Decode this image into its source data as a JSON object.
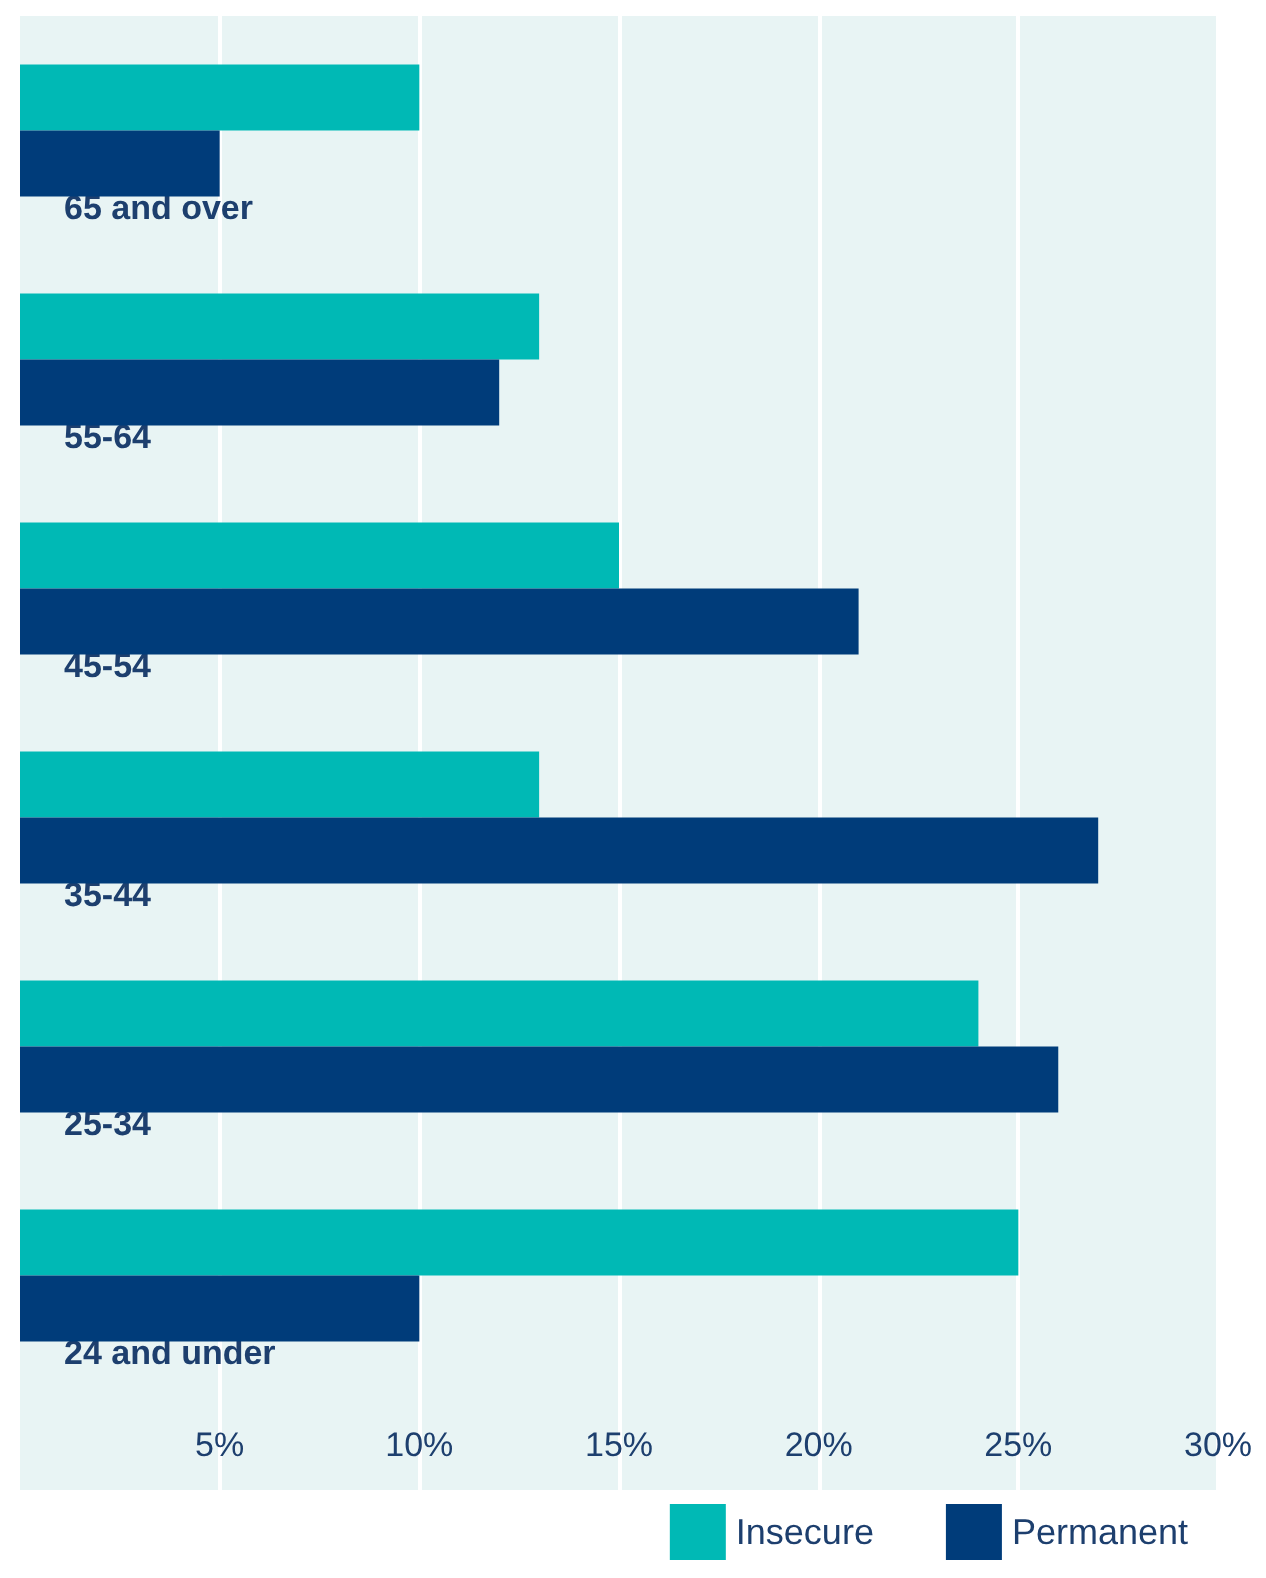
{
  "chart_data": {
    "type": "bar",
    "orientation": "horizontal",
    "categories": [
      "65 and over",
      "55-64",
      "45-54",
      "35-44",
      "25-34",
      "24 and under"
    ],
    "series": [
      {
        "name": "Insecure",
        "color": "#00b9b5",
        "values": [
          10,
          13,
          15,
          13,
          24,
          25
        ]
      },
      {
        "name": "Permanent",
        "color": "#003c7a",
        "values": [
          5,
          12,
          21,
          27,
          26,
          10
        ]
      }
    ],
    "xlim": [
      0,
      30
    ],
    "xticks": [
      {
        "value": 5,
        "label": "5%"
      },
      {
        "value": 10,
        "label": "10%"
      },
      {
        "value": 15,
        "label": "15%"
      },
      {
        "value": 20,
        "label": "20%"
      },
      {
        "value": 25,
        "label": "25%"
      },
      {
        "value": 30,
        "label": "30%"
      }
    ],
    "grid": "x",
    "legend": "bottom right"
  }
}
